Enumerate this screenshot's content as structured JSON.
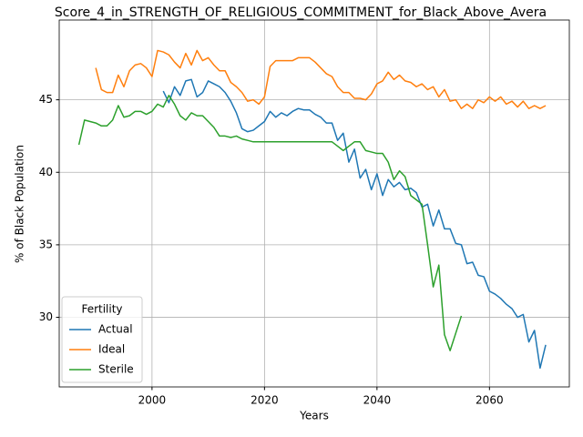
{
  "chart_data": {
    "type": "line",
    "title": "Score_4_in_STRENGTH_OF_RELIGIOUS_COMMITMENT_for_Black_Above_Avera",
    "x_label": "Years",
    "y_label": "% of Black Population",
    "x": [
      1987,
      1988,
      1989,
      1990,
      1991,
      1992,
      1993,
      1994,
      1995,
      1996,
      1997,
      1998,
      1999,
      2000,
      2001,
      2002,
      2003,
      2004,
      2005,
      2006,
      2007,
      2008,
      2009,
      2010,
      2011,
      2012,
      2013,
      2014,
      2015,
      2016,
      2017,
      2018,
      2019,
      2020,
      2021,
      2022,
      2023,
      2024,
      2025,
      2026,
      2027,
      2028,
      2029,
      2030,
      2031,
      2032,
      2033,
      2034,
      2035,
      2036,
      2037,
      2038,
      2039,
      2040,
      2041,
      2042,
      2043,
      2044,
      2045,
      2046,
      2047,
      2048,
      2049,
      2050,
      2051,
      2052,
      2053,
      2054,
      2055,
      2056,
      2057,
      2058,
      2059,
      2060,
      2061,
      2062,
      2063,
      2064,
      2065,
      2066,
      2067,
      2068,
      2069,
      2070
    ],
    "series": [
      {
        "name": "Actual",
        "color": "#1f77b4",
        "values": [
          null,
          null,
          null,
          null,
          null,
          null,
          null,
          null,
          null,
          null,
          null,
          null,
          null,
          null,
          null,
          45.6,
          44.8,
          45.9,
          45.3,
          46.3,
          46.4,
          45.2,
          45.5,
          46.3,
          46.1,
          45.9,
          45.5,
          44.9,
          44.1,
          43.0,
          42.8,
          42.9,
          43.2,
          43.5,
          44.2,
          43.8,
          44.1,
          43.9,
          44.2,
          44.4,
          44.3,
          44.3,
          44.0,
          43.8,
          43.4,
          43.4,
          42.2,
          42.7,
          40.7,
          41.6,
          39.6,
          40.2,
          38.8,
          39.9,
          38.4,
          39.5,
          39.0,
          39.3,
          38.8,
          38.9,
          38.6,
          37.6,
          37.8,
          36.3,
          37.4,
          36.1,
          36.1,
          35.1,
          35.0,
          33.7,
          33.8,
          32.9,
          32.8,
          31.8,
          31.6,
          31.3,
          30.9,
          30.6,
          30.0,
          30.2,
          28.3,
          29.1,
          26.5,
          28.1
        ]
      },
      {
        "name": "Ideal",
        "color": "#ff7f0e",
        "values": [
          null,
          null,
          null,
          47.2,
          45.7,
          45.5,
          45.5,
          46.7,
          45.9,
          47.0,
          47.4,
          47.5,
          47.2,
          46.6,
          48.4,
          48.3,
          48.1,
          47.6,
          47.2,
          48.2,
          47.4,
          48.4,
          47.7,
          47.9,
          47.4,
          47.0,
          47.0,
          46.2,
          45.9,
          45.5,
          44.9,
          45.0,
          44.7,
          45.2,
          47.3,
          47.7,
          47.7,
          47.7,
          47.7,
          47.9,
          47.9,
          47.9,
          47.6,
          47.2,
          46.8,
          46.6,
          45.9,
          45.5,
          45.5,
          45.1,
          45.1,
          45.0,
          45.4,
          46.1,
          46.3,
          46.9,
          46.4,
          46.7,
          46.3,
          46.2,
          45.9,
          46.1,
          45.7,
          45.9,
          45.2,
          45.7,
          44.9,
          45.0,
          44.4,
          44.7,
          44.4,
          45.0,
          44.8,
          45.2,
          44.9,
          45.2,
          44.7,
          44.9,
          44.5,
          44.9,
          44.4,
          44.6,
          44.4,
          44.6
        ]
      },
      {
        "name": "Sterile",
        "color": "#2ca02c",
        "values": [
          41.9,
          43.6,
          43.5,
          43.4,
          43.2,
          43.2,
          43.6,
          44.6,
          43.8,
          43.9,
          44.2,
          44.2,
          44.0,
          44.2,
          44.7,
          44.5,
          45.3,
          44.7,
          43.9,
          43.6,
          44.1,
          43.9,
          43.9,
          43.5,
          43.1,
          42.5,
          42.5,
          42.4,
          42.5,
          42.3,
          42.2,
          42.1,
          42.1,
          42.1,
          42.1,
          42.1,
          42.1,
          42.1,
          42.1,
          42.1,
          42.1,
          42.1,
          42.1,
          42.1,
          42.1,
          42.1,
          41.8,
          41.5,
          41.8,
          42.1,
          42.1,
          41.5,
          41.4,
          41.3,
          41.3,
          40.7,
          39.5,
          40.1,
          39.7,
          38.4,
          38.1,
          37.8,
          35.0,
          32.1,
          33.6,
          28.8,
          27.7,
          28.9,
          30.1,
          null,
          null,
          null,
          null,
          null,
          null,
          null,
          null,
          null,
          null,
          null,
          null,
          null,
          null,
          null
        ]
      }
    ],
    "xlim": [
      1983.5,
      2074.2
    ],
    "ylim": [
      25.2,
      50.5
    ],
    "xticks": [
      2000,
      2020,
      2040,
      2060
    ],
    "yticks": [
      30,
      35,
      40,
      45
    ],
    "grid": true,
    "legend_title": "Fertility",
    "legend_position": "lower left"
  }
}
